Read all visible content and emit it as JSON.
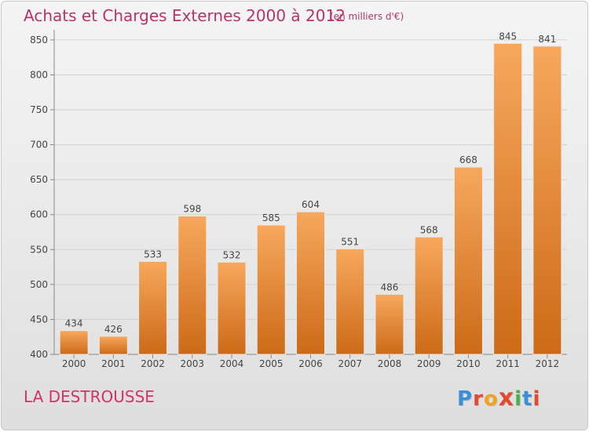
{
  "header": {
    "title": "Achats et Charges Externes 2000 à 2012",
    "subtitle": "(en milliers d'€)"
  },
  "footer": {
    "place_name": "LA DESTROUSSE",
    "logo_text": "Proxiti",
    "logo_colors": [
      "#3a8fd6",
      "#e2492f",
      "#f3a31b",
      "#e2492f",
      "#4ab04a",
      "#3a8fd6",
      "#e2492f"
    ]
  },
  "colors": {
    "bar_top": "#f7a85c",
    "bar_bottom": "#cc6a18",
    "title": "#b8336a",
    "grid": "#d2d2d2"
  },
  "chart_data": {
    "type": "bar",
    "title": "Achats et Charges Externes 2000 à 2012",
    "subtitle": "(en milliers d'€)",
    "xlabel": "",
    "ylabel": "",
    "categories": [
      "2000",
      "2001",
      "2002",
      "2003",
      "2004",
      "2005",
      "2006",
      "2007",
      "2008",
      "2009",
      "2010",
      "2011",
      "2012"
    ],
    "values": [
      434,
      426,
      533,
      598,
      532,
      585,
      604,
      551,
      486,
      568,
      668,
      845,
      841
    ],
    "ylim": [
      400,
      860
    ],
    "yticks": [
      400,
      450,
      500,
      550,
      600,
      650,
      700,
      750,
      800,
      850
    ],
    "grid": true,
    "data_labels": true
  }
}
